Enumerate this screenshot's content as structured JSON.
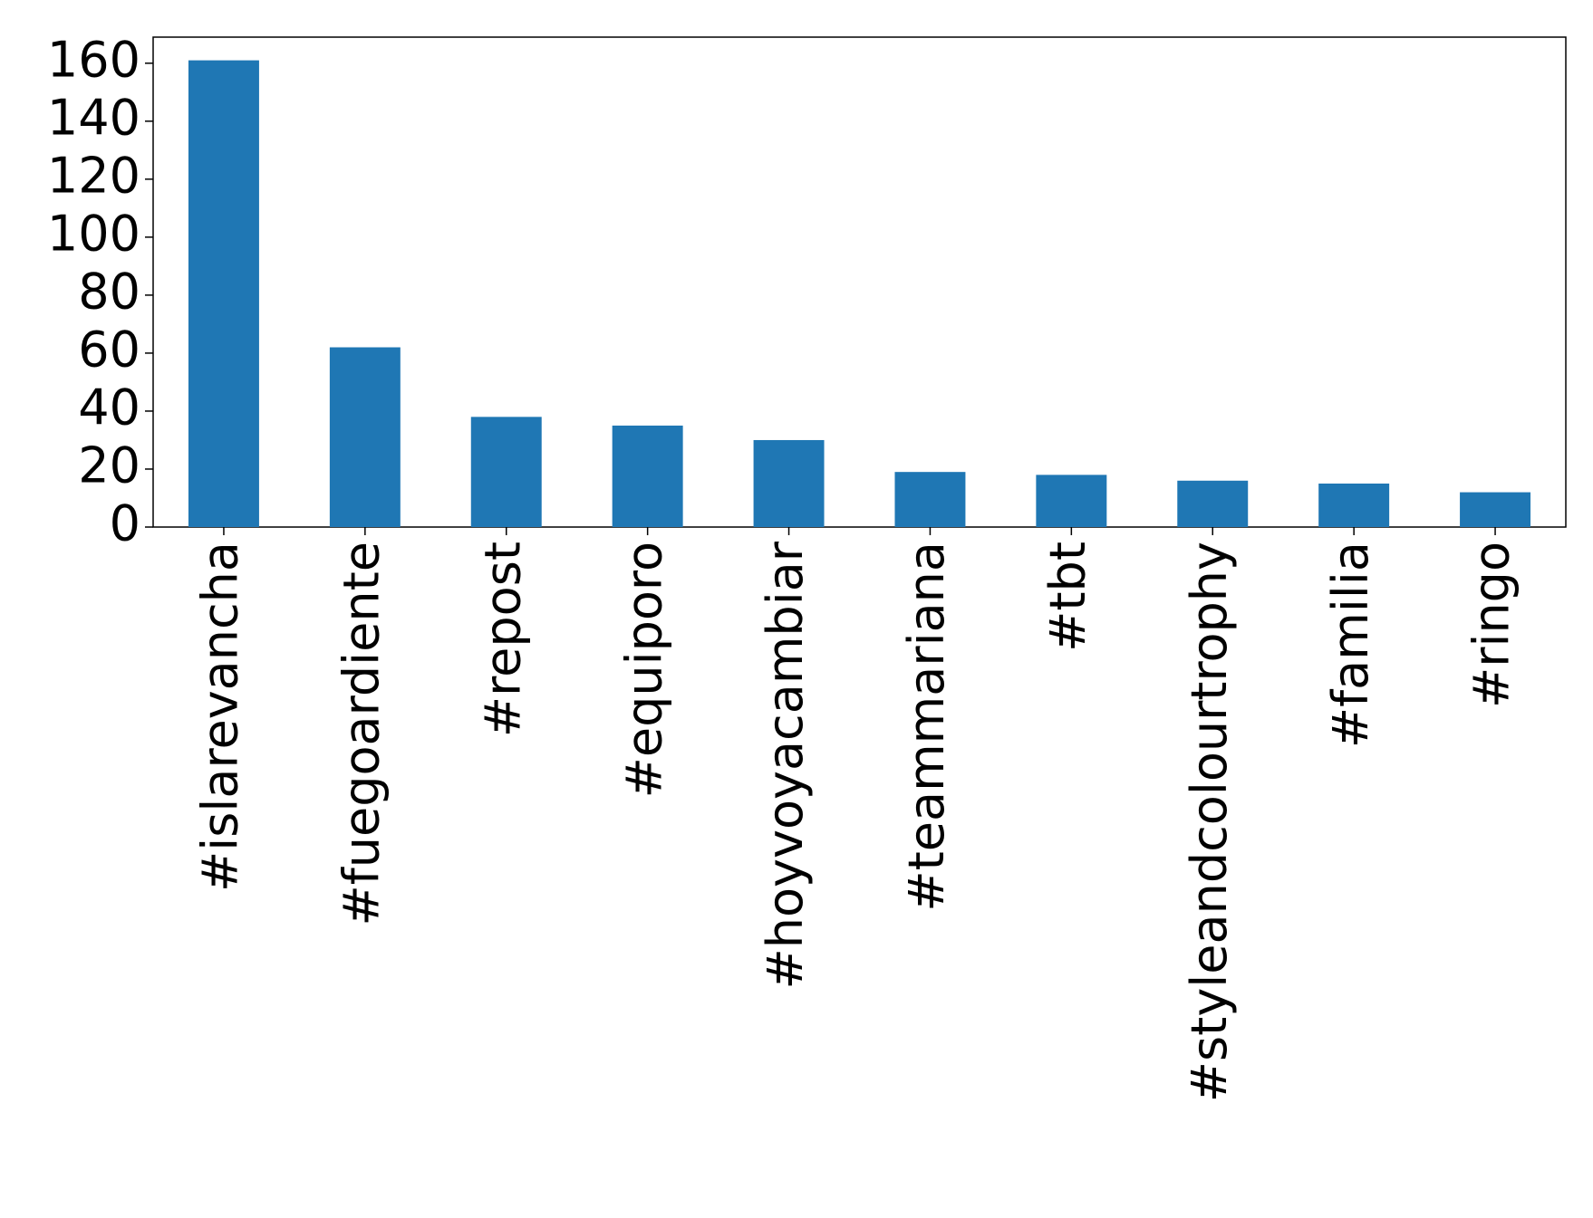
{
  "chart_data": {
    "type": "bar",
    "categories": [
      "#islarevancha",
      "#fuegoardiente",
      "#repost",
      "#equiporo",
      "#hoyvoyacambiar",
      "#teammariana",
      "#tbt",
      "#styleandcolourtrophy",
      "#familia",
      "#ringo"
    ],
    "values": [
      161,
      62,
      38,
      35,
      30,
      19,
      18,
      16,
      15,
      12
    ],
    "color": "#1f77b4",
    "ylim": [
      0,
      169
    ],
    "yticks": [
      0,
      20,
      40,
      60,
      80,
      100,
      120,
      140,
      160
    ],
    "grid": false
  }
}
